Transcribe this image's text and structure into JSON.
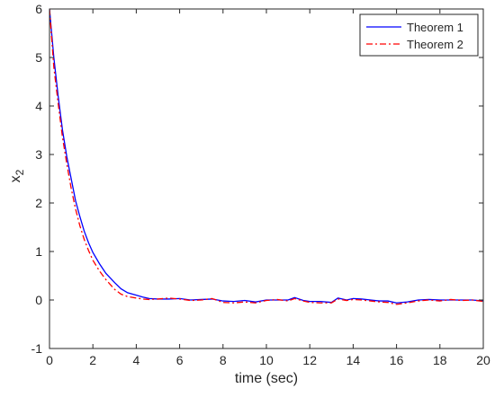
{
  "chart_data": {
    "type": "line",
    "title": "",
    "xlabel": "time (sec)",
    "ylabel_main": "x",
    "ylabel_sub": "2",
    "xlim": [
      0,
      20
    ],
    "ylim": [
      -1,
      6
    ],
    "xticks": [
      0,
      2,
      4,
      6,
      8,
      10,
      12,
      14,
      16,
      18,
      20
    ],
    "yticks": [
      -1,
      0,
      1,
      2,
      3,
      4,
      5,
      6
    ],
    "grid": false,
    "legend_position": "top-right",
    "series": [
      {
        "name": "Theorem 1",
        "color": "#0000ff",
        "dash": "solid",
        "x": [
          0,
          0.2,
          0.4,
          0.6,
          0.8,
          1.0,
          1.2,
          1.4,
          1.6,
          1.8,
          2.0,
          2.3,
          2.6,
          3.0,
          3.3,
          3.6,
          4.0,
          4.3,
          4.6,
          5.0,
          5.5,
          6.0,
          6.5,
          7.0,
          7.5,
          8.0,
          8.5,
          9.0,
          9.5,
          10.0,
          10.5,
          11.0,
          11.3,
          11.7,
          12.0,
          12.5,
          13.0,
          13.3,
          13.7,
          14.0,
          14.4,
          14.8,
          15.2,
          15.6,
          16.0,
          16.5,
          17.0,
          17.5,
          18.0,
          18.5,
          19.0,
          19.5,
          20.0
        ],
        "y": [
          6.0,
          5.0,
          4.2,
          3.5,
          2.95,
          2.5,
          2.05,
          1.72,
          1.42,
          1.18,
          0.98,
          0.75,
          0.55,
          0.36,
          0.23,
          0.15,
          0.1,
          0.06,
          0.03,
          0.02,
          0.02,
          0.03,
          0.0,
          0.01,
          0.02,
          -0.02,
          -0.03,
          -0.01,
          -0.04,
          0.0,
          0.0,
          0.0,
          0.05,
          -0.01,
          -0.03,
          -0.03,
          -0.05,
          0.04,
          0.0,
          0.03,
          0.02,
          0.0,
          -0.02,
          -0.02,
          -0.06,
          -0.04,
          0.0,
          0.01,
          0.0,
          0.0,
          0.0,
          0.0,
          -0.02
        ]
      },
      {
        "name": "Theorem 2",
        "color": "#ff0000",
        "dash": "dashdot",
        "x": [
          0,
          0.2,
          0.4,
          0.6,
          0.8,
          1.0,
          1.2,
          1.4,
          1.6,
          1.8,
          2.0,
          2.3,
          2.6,
          3.0,
          3.3,
          3.6,
          4.0,
          4.3,
          4.6,
          5.0,
          5.5,
          6.0,
          6.5,
          7.0,
          7.5,
          8.0,
          8.5,
          9.0,
          9.5,
          10.0,
          10.5,
          11.0,
          11.3,
          11.7,
          12.0,
          12.5,
          13.0,
          13.3,
          13.7,
          14.0,
          14.4,
          14.8,
          15.2,
          15.6,
          16.0,
          16.5,
          17.0,
          17.5,
          18.0,
          18.5,
          19.0,
          19.5,
          20.0
        ],
        "y": [
          6.0,
          4.8,
          4.05,
          3.35,
          2.8,
          2.3,
          1.88,
          1.53,
          1.25,
          1.02,
          0.82,
          0.6,
          0.42,
          0.22,
          0.12,
          0.07,
          0.04,
          0.02,
          0.01,
          0.02,
          0.04,
          0.02,
          -0.01,
          0.0,
          0.03,
          -0.05,
          -0.06,
          -0.04,
          -0.06,
          -0.01,
          0.01,
          -0.02,
          0.03,
          -0.02,
          -0.05,
          -0.06,
          -0.06,
          0.02,
          -0.01,
          0.01,
          0.0,
          -0.02,
          -0.04,
          -0.05,
          -0.09,
          -0.06,
          -0.02,
          0.0,
          -0.02,
          0.01,
          -0.01,
          0.0,
          -0.03
        ]
      }
    ]
  }
}
